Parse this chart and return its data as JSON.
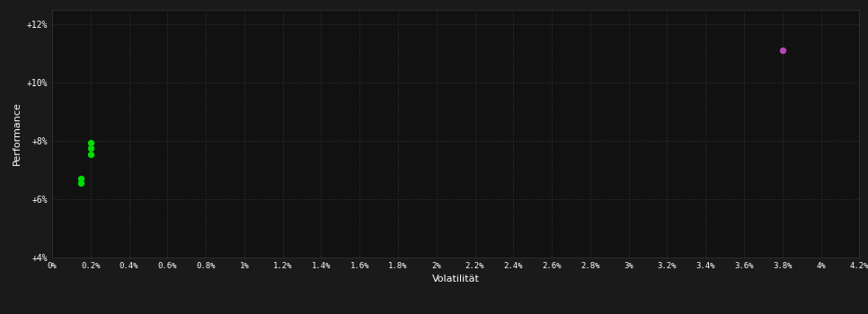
{
  "background_color": "#1a1a1a",
  "plot_bg_color": "#111111",
  "grid_color": "#2d2d2d",
  "text_color": "#ffffff",
  "xlabel": "Volatilität",
  "ylabel": "Performance",
  "xlim": [
    0.0,
    0.042
  ],
  "ylim": [
    0.04,
    0.125
  ],
  "xtick_vals": [
    0.0,
    0.002,
    0.004,
    0.006,
    0.008,
    0.01,
    0.012,
    0.014,
    0.016,
    0.018,
    0.02,
    0.022,
    0.024,
    0.026,
    0.028,
    0.03,
    0.032,
    0.034,
    0.036,
    0.038,
    0.04,
    0.042
  ],
  "xtick_labels": [
    "0%",
    "0.2%",
    "0.4%",
    "0.6%",
    "0.8%",
    "1%",
    "1.2%",
    "1.4%",
    "1.6%",
    "1.8%",
    "2%",
    "2.2%",
    "2.4%",
    "2.6%",
    "2.8%",
    "3%",
    "3.2%",
    "3.4%",
    "3.6%",
    "3.8%",
    "4%",
    "4.2%"
  ],
  "ytick_vals": [
    0.04,
    0.06,
    0.08,
    0.1,
    0.12
  ],
  "ytick_labels": [
    "+4%",
    "+6%",
    "+8%",
    "+10%",
    "+12%"
  ],
  "green_points": [
    [
      0.0015,
      0.0655
    ],
    [
      0.0015,
      0.0672
    ],
    [
      0.002,
      0.0775
    ],
    [
      0.002,
      0.0795
    ],
    [
      0.002,
      0.0755
    ]
  ],
  "magenta_points": [
    [
      0.038,
      0.111
    ]
  ],
  "green_color": "#00dd00",
  "magenta_color": "#bb44bb",
  "point_size": 28,
  "figwidth": 9.66,
  "figheight": 3.5,
  "dpi": 100
}
